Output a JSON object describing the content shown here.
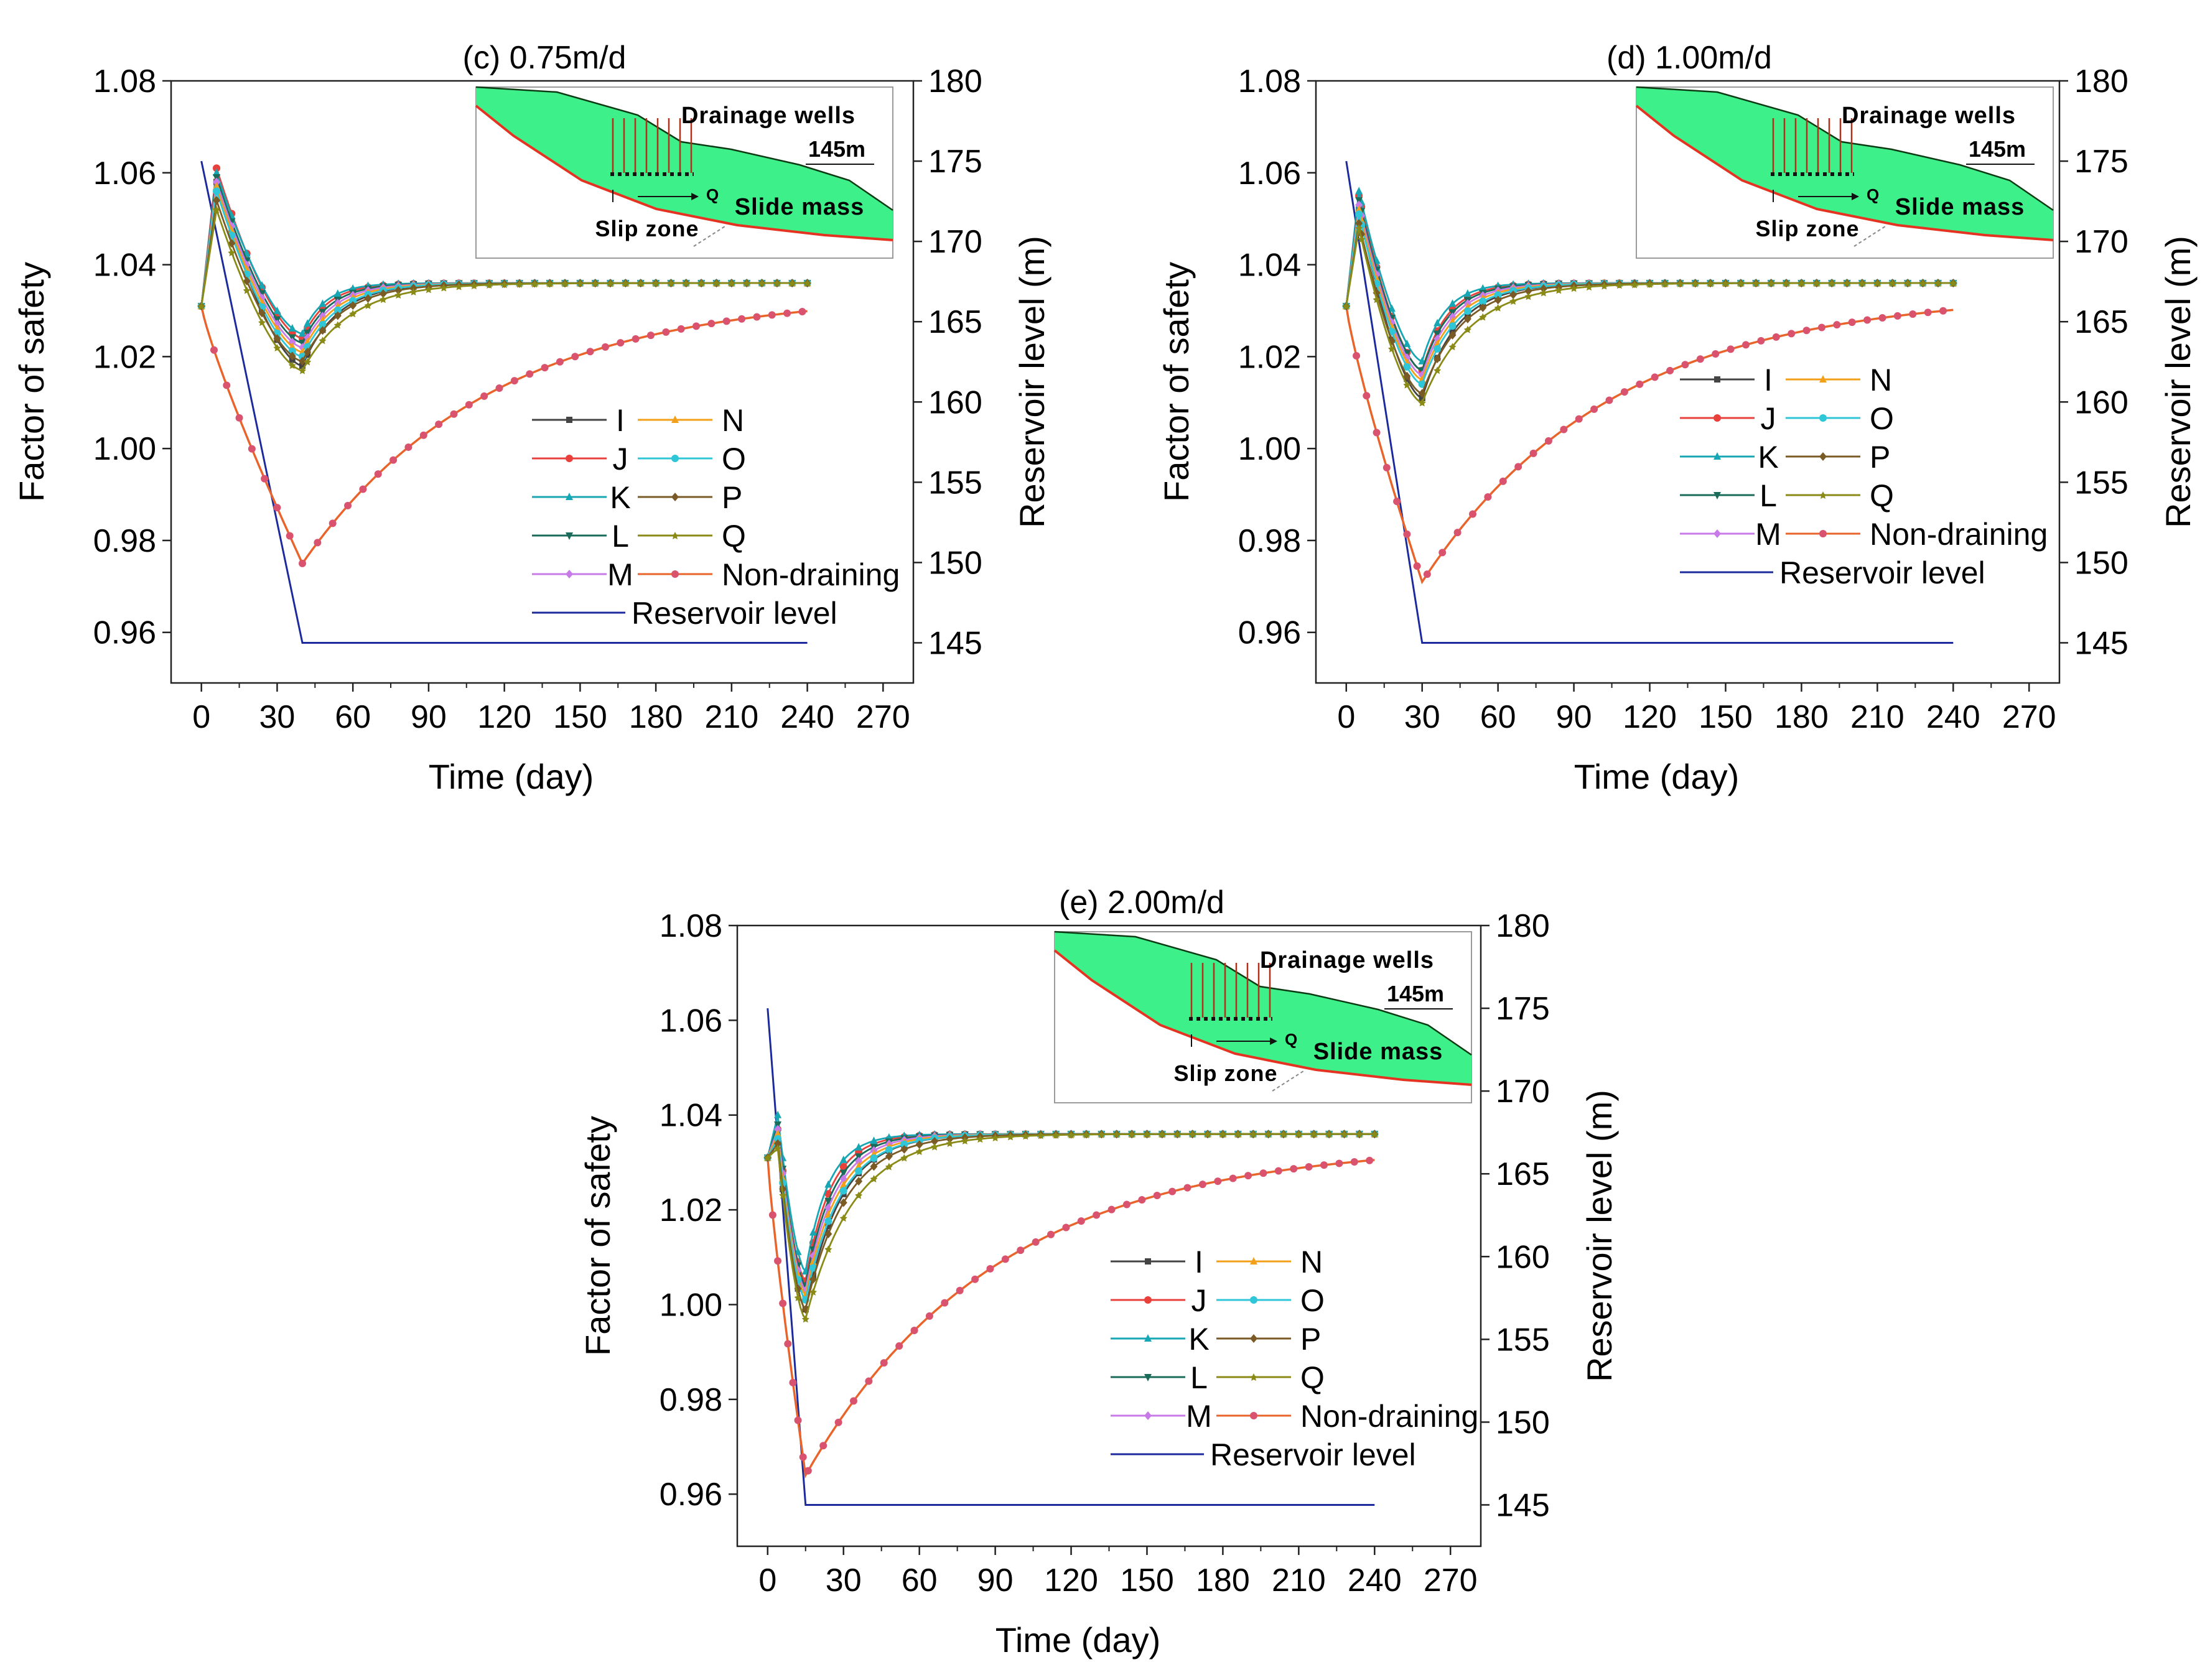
{
  "colors": {
    "I": "#444444",
    "J": "#e8413c",
    "K": "#17a6b3",
    "L": "#1a6b5a",
    "M": "#c77ae8",
    "N": "#f2a01a",
    "O": "#2fc6d8",
    "P": "#7a5a25",
    "Q": "#8a8a17",
    "non_draining": "#e9642a",
    "non_draining_marker": "#d9536e",
    "reservoir": "#1c2a9c",
    "slide_fill": "#3df08a",
    "slip_line": "#e53322"
  },
  "chart_data": [
    {
      "type": "line",
      "title": "(c) 0.75m/d",
      "xlabel": "Time (day)",
      "ylabel": "Factor of safety",
      "y2label": "Reservoir level (m)",
      "xlim": [
        -12,
        282
      ],
      "ylim": [
        0.949,
        1.08
      ],
      "y2lim": [
        142.5,
        180
      ],
      "xticks": [
        "0",
        "30",
        "60",
        "90",
        "120",
        "150",
        "180",
        "210",
        "240",
        "270"
      ],
      "yticks": [
        "1.08",
        "1.06",
        "1.04",
        "1.02",
        "1.00",
        "0.98",
        "0.96"
      ],
      "y2ticks": [
        "180",
        "175",
        "170",
        "165",
        "160",
        "155",
        "150",
        "145"
      ],
      "legend_position": "center-right",
      "drawdown_days": 40,
      "reservoir": {
        "name": "Reservoir level",
        "x": [
          0,
          40,
          240
        ],
        "y": [
          175,
          145,
          145
        ]
      },
      "drain": {
        "t_peak": 6,
        "t_min": 40,
        "t_end": 240,
        "start": 1.031,
        "end": [
          1.036,
          1.036,
          1.036,
          1.036,
          1.036,
          1.036,
          1.036,
          1.036,
          1.036
        ],
        "peak": [
          1.058,
          1.061,
          1.06,
          1.059,
          1.058,
          1.057,
          1.056,
          1.054,
          1.052
        ],
        "min": [
          1.018,
          1.024,
          1.025,
          1.023,
          1.022,
          1.021,
          1.02,
          1.019,
          1.017
        ],
        "tau": [
          14,
          10,
          9,
          11,
          12,
          13,
          14,
          16,
          19
        ]
      },
      "non_draining": {
        "t_min": 40,
        "start": 1.031,
        "min": 0.975,
        "end": 1.034,
        "tau": 75
      },
      "series": [
        {
          "name": "I"
        },
        {
          "name": "J"
        },
        {
          "name": "K"
        },
        {
          "name": "L"
        },
        {
          "name": "M"
        },
        {
          "name": "N"
        },
        {
          "name": "O"
        },
        {
          "name": "P"
        },
        {
          "name": "Q"
        },
        {
          "name": "Non-draining"
        }
      ],
      "inset": {
        "drainage_label": "Drainage wells",
        "level_label": "145m",
        "flow_label": "Q",
        "slide_label": "Slide mass",
        "slip_label": "Slip zone",
        "well_count": 8
      }
    },
    {
      "type": "line",
      "title": "(d) 1.00m/d",
      "xlabel": "Time (day)",
      "ylabel": "Factor of safety",
      "y2label": "Reservoir level (m)",
      "xlim": [
        -12,
        282
      ],
      "ylim": [
        0.949,
        1.08
      ],
      "y2lim": [
        142.5,
        180
      ],
      "xticks": [
        "0",
        "30",
        "60",
        "90",
        "120",
        "150",
        "180",
        "210",
        "240",
        "270"
      ],
      "yticks": [
        "1.08",
        "1.06",
        "1.04",
        "1.02",
        "1.00",
        "0.98",
        "0.96"
      ],
      "y2ticks": [
        "180",
        "175",
        "170",
        "165",
        "160",
        "155",
        "150",
        "145"
      ],
      "legend_position": "center-right",
      "drawdown_days": 30,
      "reservoir": {
        "name": "Reservoir level",
        "x": [
          0,
          30,
          240
        ],
        "y": [
          175,
          145,
          145
        ]
      },
      "drain": {
        "t_peak": 5,
        "t_min": 30,
        "t_end": 240,
        "start": 1.031,
        "end": [
          1.036,
          1.036,
          1.036,
          1.036,
          1.036,
          1.036,
          1.036,
          1.036,
          1.036
        ],
        "peak": [
          1.052,
          1.055,
          1.056,
          1.054,
          1.053,
          1.052,
          1.051,
          1.049,
          1.048
        ],
        "min": [
          1.011,
          1.017,
          1.019,
          1.017,
          1.016,
          1.015,
          1.014,
          1.012,
          1.01
        ],
        "tau": [
          14,
          10,
          9,
          11,
          12,
          13,
          14,
          16,
          19
        ]
      },
      "non_draining": {
        "t_min": 30,
        "start": 1.031,
        "min": 0.971,
        "end": 1.034,
        "tau": 75
      },
      "series": [
        {
          "name": "I"
        },
        {
          "name": "J"
        },
        {
          "name": "K"
        },
        {
          "name": "L"
        },
        {
          "name": "M"
        },
        {
          "name": "N"
        },
        {
          "name": "O"
        },
        {
          "name": "P"
        },
        {
          "name": "Q"
        },
        {
          "name": "Non-draining"
        }
      ],
      "inset": {
        "drainage_label": "Drainage wells",
        "level_label": "145m",
        "flow_label": "Q",
        "slide_label": "Slide mass",
        "slip_label": "Slip zone",
        "well_count": 8
      }
    },
    {
      "type": "line",
      "title": "(e) 2.00m/d",
      "xlabel": "Time (day)",
      "ylabel": "Factor of safety",
      "y2label": "Reservoir level (m)",
      "xlim": [
        -12,
        282
      ],
      "ylim": [
        0.949,
        1.08
      ],
      "y2lim": [
        142.5,
        180
      ],
      "xticks": [
        "0",
        "30",
        "60",
        "90",
        "120",
        "150",
        "180",
        "210",
        "240",
        "270"
      ],
      "yticks": [
        "1.08",
        "1.06",
        "1.04",
        "1.02",
        "1.00",
        "0.98",
        "0.96"
      ],
      "y2ticks": [
        "180",
        "175",
        "170",
        "165",
        "160",
        "155",
        "150",
        "145"
      ],
      "legend_position": "center-right",
      "drawdown_days": 15,
      "reservoir": {
        "name": "Reservoir level",
        "x": [
          0,
          15,
          240
        ],
        "y": [
          175,
          145,
          145
        ]
      },
      "drain": {
        "t_peak": 4,
        "t_min": 15,
        "t_end": 240,
        "start": 1.031,
        "end": [
          1.036,
          1.036,
          1.036,
          1.036,
          1.036,
          1.036,
          1.036,
          1.036,
          1.036
        ],
        "peak": [
          1.034,
          1.037,
          1.04,
          1.038,
          1.037,
          1.036,
          1.035,
          1.034,
          1.033
        ],
        "min": [
          0.999,
          1.005,
          1.007,
          1.004,
          1.003,
          1.002,
          1.001,
          0.999,
          0.997
        ],
        "tau": [
          14,
          10,
          9,
          11,
          12,
          13,
          14,
          16,
          19
        ]
      },
      "non_draining": {
        "t_min": 15,
        "start": 1.031,
        "min": 0.964,
        "end": 1.034,
        "tau": 75
      },
      "series": [
        {
          "name": "I"
        },
        {
          "name": "J"
        },
        {
          "name": "K"
        },
        {
          "name": "L"
        },
        {
          "name": "M"
        },
        {
          "name": "N"
        },
        {
          "name": "O"
        },
        {
          "name": "P"
        },
        {
          "name": "Q"
        },
        {
          "name": "Non-draining"
        }
      ],
      "inset": {
        "drainage_label": "Drainage wells",
        "level_label": "145m",
        "flow_label": "Q",
        "slide_label": "Slide mass",
        "slip_label": "Slip zone",
        "well_count": 8
      }
    }
  ]
}
